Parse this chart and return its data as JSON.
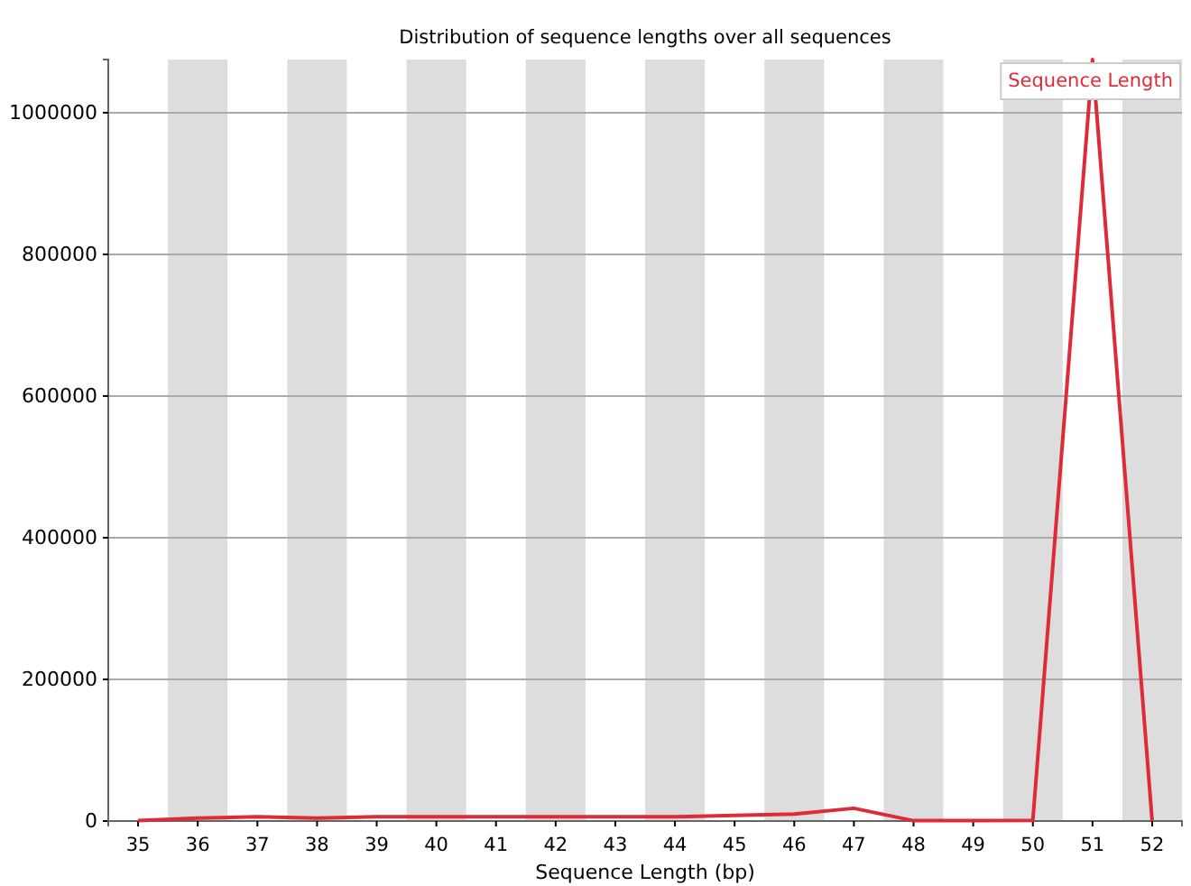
{
  "chart_data": {
    "type": "line",
    "title": "Distribution of sequence lengths over all sequences",
    "xlabel": "Sequence Length (bp)",
    "categories": [
      "35",
      "36",
      "37",
      "38",
      "39",
      "40",
      "41",
      "42",
      "43",
      "44",
      "45",
      "46",
      "47",
      "48",
      "49",
      "50",
      "51",
      "52"
    ],
    "series": [
      {
        "name": "Sequence Length",
        "color": "#dd2c38",
        "values": [
          500,
          4000,
          6000,
          4000,
          6000,
          6000,
          6000,
          6000,
          6000,
          6000,
          8000,
          10000,
          18000,
          500,
          500,
          1000,
          1075000,
          0
        ]
      }
    ],
    "ylim": [
      0,
      1075000
    ],
    "yticks": [
      0,
      200000,
      400000,
      600000,
      800000,
      1000000
    ],
    "grid": "y",
    "legend": "top right",
    "bands": [
      {
        "axis": "x",
        "from": "36",
        "to": "36",
        "color": "#dddddd"
      },
      {
        "axis": "x",
        "from": "38",
        "to": "38",
        "color": "#dddddd"
      },
      {
        "axis": "x",
        "from": "40",
        "to": "40",
        "color": "#dddddd"
      },
      {
        "axis": "x",
        "from": "42",
        "to": "42",
        "color": "#dddddd"
      },
      {
        "axis": "x",
        "from": "44",
        "to": "44",
        "color": "#dddddd"
      },
      {
        "axis": "x",
        "from": "46",
        "to": "46",
        "color": "#dddddd"
      },
      {
        "axis": "x",
        "from": "48",
        "to": "48",
        "color": "#dddddd"
      },
      {
        "axis": "x",
        "from": "50",
        "to": "50",
        "color": "#dddddd"
      },
      {
        "axis": "x",
        "from": "52",
        "to": "52",
        "color": "#dddddd"
      }
    ]
  }
}
